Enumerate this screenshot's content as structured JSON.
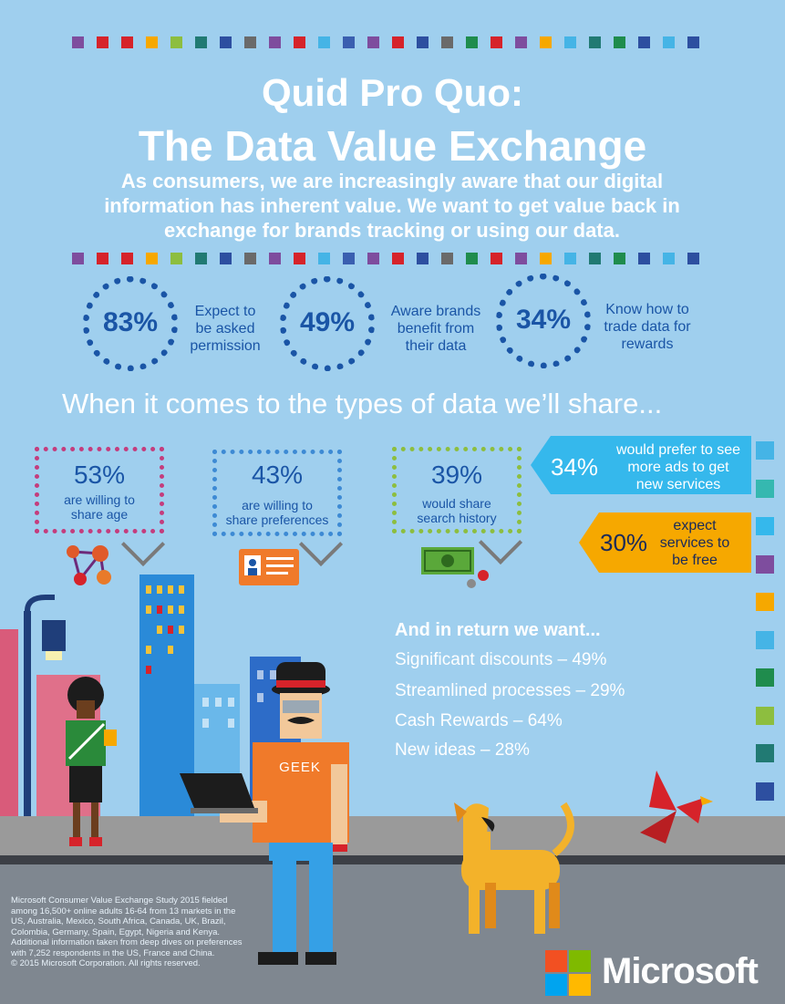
{
  "header": {
    "title_line1": "Quid Pro Quo:",
    "title_line2": "The Data Value Exchange",
    "intro_line1": "As consumers, we are increasingly aware that our digital",
    "intro_line2": "information has inherent value. We want to get value back in",
    "intro_line3": "exchange for brands tracking or using our data."
  },
  "colors": {
    "background": "#9fcfee",
    "accent_blue": "#1a55a6",
    "cyan": "#35b8ec",
    "orange": "#f6a800",
    "street": "#888888",
    "squares": [
      "#7e4d9e",
      "#d6232a",
      "#d6232a",
      "#f6a800",
      "#8dbe3f",
      "#217a73",
      "#2d4fa0",
      "#6a6a6a",
      "#7e4d9e",
      "#d6232a",
      "#45b4e6",
      "#3a5fb0",
      "#7e4d9e",
      "#d6232a",
      "#2d4fa0",
      "#6a6a6a",
      "#1f8c4d",
      "#d6232a",
      "#7e4d9e",
      "#f6a800",
      "#45b4e6",
      "#217a73",
      "#1f8c4d",
      "#2d4fa0",
      "#45b4e6",
      "#2d4fa0"
    ]
  },
  "stats": [
    {
      "value": "83%",
      "label_line1": "Expect to",
      "label_line2": "be asked",
      "label_line3": "permission"
    },
    {
      "value": "49%",
      "label_line1": "Aware brands",
      "label_line2": "benefit from",
      "label_line3": "their data"
    },
    {
      "value": "34%",
      "label_line1": "Know how to",
      "label_line2": "trade data for",
      "label_line3": "rewards"
    }
  ],
  "data_types": {
    "heading": "When it comes to the types of data we’ll share...",
    "items": [
      {
        "value": "53%",
        "label_line1": "are willing to",
        "label_line2": "share age",
        "icon": "molecule-icon"
      },
      {
        "value": "43%",
        "label_line1": "are willing to",
        "label_line2": "share preferences",
        "icon": "id-card-icon"
      },
      {
        "value": "39%",
        "label_line1": "would share",
        "label_line2": "search history",
        "icon": "money-icon"
      }
    ]
  },
  "callouts": [
    {
      "value": "34%",
      "line1": "would prefer to see",
      "line2": "more ads to get",
      "line3": "new services"
    },
    {
      "value": "30%",
      "line1": "expect",
      "line2": "services to",
      "line3": "be free"
    }
  ],
  "wants": {
    "heading": "And in return we want...",
    "items": [
      {
        "text": "Significant discounts – 49%"
      },
      {
        "text": "Streamlined processes – 29%"
      },
      {
        "text": "Cash Rewards – 64%"
      },
      {
        "text": "New ideas – 28%"
      }
    ]
  },
  "illustration": {
    "shirt_text": "GEEK"
  },
  "footnote": {
    "line1": "Microsoft Consumer Value Exchange Study 2015 fielded",
    "line2": "among 16,500+ online adults 16-64 from 13 markets in the",
    "line3": "US, Australia, Mexico, South Africa, Canada, UK, Brazil,",
    "line4": "Colombia, Germany, Spain, Egypt, Nigeria and Kenya.",
    "line5": "Additional information taken from deep dives on preferences",
    "line6": "with 7,252 respondents in the US, France and China.",
    "line7": "© 2015 Microsoft Corporation. All rights reserved."
  },
  "brand": {
    "name": "Microsoft",
    "logo_colors": [
      "#f25022",
      "#7fba00",
      "#00a4ef",
      "#ffb900"
    ]
  }
}
